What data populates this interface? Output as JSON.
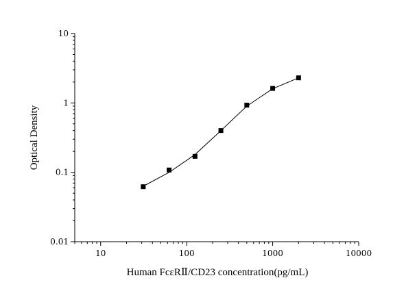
{
  "chart_data": {
    "type": "scatter",
    "title": "",
    "xlabel": "Human FcεRⅡ/CD23 concentration(pg/mL)",
    "ylabel": "Optical Density",
    "x_scale": "log",
    "y_scale": "log",
    "xlim": [
      5,
      10000
    ],
    "ylim": [
      0.01,
      10
    ],
    "x_ticks": [
      "10",
      "100",
      "1000",
      "10000"
    ],
    "y_ticks": [
      "0.01",
      "0.1",
      "1",
      "10"
    ],
    "grid": false,
    "legend": "none",
    "series": [
      {
        "marker": "square",
        "color": "#000000",
        "x": [
          31.25,
          62.5,
          125,
          250,
          500,
          1000,
          2000
        ],
        "y": [
          0.062,
          0.108,
          0.17,
          0.4,
          0.93,
          1.62,
          2.3
        ]
      }
    ],
    "fit_curve": {
      "color": "#000000",
      "x": [
        31.25,
        62.5,
        125,
        250,
        500,
        1000,
        2000
      ],
      "y": [
        0.063,
        0.1,
        0.18,
        0.4,
        0.9,
        1.6,
        2.3
      ]
    }
  }
}
